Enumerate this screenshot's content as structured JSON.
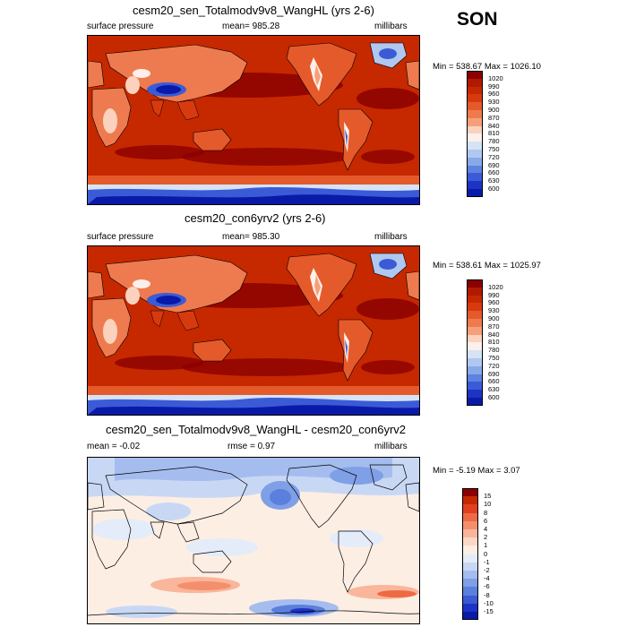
{
  "season": "SON",
  "panels": [
    {
      "title": "cesm20_sen_Totalmodv9v8_WangHL (yrs 2-6)",
      "left": "surface pressure",
      "center": "mean= 985.28",
      "right": "millibars",
      "minmax": "Min = 538.67 Max = 1026.10",
      "kind": "abs"
    },
    {
      "title": "cesm20_con6yrv2 (yrs 2-6)",
      "left": "surface pressure",
      "center": "mean= 985.30",
      "right": "millibars",
      "minmax": "Min = 538.61 Max = 1025.97",
      "kind": "abs"
    },
    {
      "title": "cesm20_sen_Totalmodv9v8_WangHL - cesm20_con6yrv2",
      "left": "mean =  -0.02",
      "center": "rmse =   0.97",
      "right": "millibars",
      "minmax": "Min =  -5.19 Max =   3.07",
      "kind": "diff"
    }
  ],
  "colorbar_abs": {
    "labels": [
      "1020",
      "990",
      "960",
      "930",
      "900",
      "870",
      "840",
      "810",
      "780",
      "750",
      "720",
      "690",
      "660",
      "630",
      "600"
    ],
    "colors": [
      "#8b0000",
      "#b01a00",
      "#c62800",
      "#d83a10",
      "#e55a2b",
      "#ee7b4f",
      "#f5a07a",
      "#fbd2bd",
      "#fdf0ea",
      "#d5e3f7",
      "#b0c8f0",
      "#88a9e8",
      "#5c83e0",
      "#3b5bd6",
      "#1d33c4",
      "#0a1aa8"
    ]
  },
  "colorbar_diff": {
    "labels": [
      "15",
      "10",
      "8",
      "6",
      "4",
      "2",
      "1",
      "0",
      "-1",
      "-2",
      "-4",
      "-6",
      "-8",
      "-10",
      "-15"
    ],
    "colors": [
      "#8b0000",
      "#c62800",
      "#e04020",
      "#ee6a44",
      "#f48f6c",
      "#f9b69a",
      "#fcd7c4",
      "#fdeee4",
      "#e4ecf9",
      "#c8d8f4",
      "#a5bdee",
      "#7f9fe6",
      "#5a7fdd",
      "#3a5bd2",
      "#1d33c4",
      "#0a1aa8"
    ]
  }
}
